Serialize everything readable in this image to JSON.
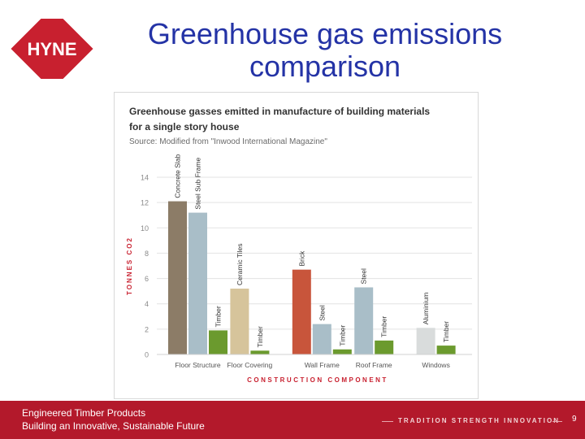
{
  "header": {
    "logo_text": "HYNE",
    "title_line1": "Greenhouse gas emissions",
    "title_line2": "comparison"
  },
  "chart_data": {
    "type": "bar",
    "title_line1": "Greenhouse gasses emitted in manufacture of building materials",
    "title_line2": "for a single story house",
    "source": "Source: Modified from \"Inwood International Magazine\"",
    "xlabel": "CONSTRUCTION COMPONENT",
    "ylabel": "TONNES CO2",
    "ylim": [
      0,
      14
    ],
    "yticks": [
      0,
      2,
      4,
      6,
      8,
      10,
      12,
      14
    ],
    "ytick_labels": [
      "0",
      "2",
      "4",
      "6",
      "8",
      "10",
      "12",
      "14"
    ],
    "grid": true,
    "groups": [
      {
        "category": "Floor Structure",
        "bars": [
          {
            "label": "Concrete Slab",
            "value": 12.1,
            "color": "#8c7c67"
          },
          {
            "label": "Steel Sub Frame",
            "value": 11.2,
            "color": "#a9bec8"
          },
          {
            "label": "Timber",
            "value": 1.9,
            "color": "#6b9a2e"
          }
        ]
      },
      {
        "category": "Floor Covering",
        "bars": [
          {
            "label": "Ceramic Tiles",
            "value": 5.2,
            "color": "#d6c49b"
          },
          {
            "label": "Timber",
            "value": 0.3,
            "color": "#6b9a2e"
          }
        ]
      },
      {
        "category": "Wall Frame",
        "bars": [
          {
            "label": "Brick",
            "value": 6.7,
            "color": "#c8553b"
          },
          {
            "label": "Steel",
            "value": 2.4,
            "color": "#a9bec8"
          },
          {
            "label": "Timber",
            "value": 0.4,
            "color": "#6b9a2e"
          }
        ]
      },
      {
        "category": "Roof Frame",
        "bars": [
          {
            "label": "Steel",
            "value": 5.3,
            "color": "#a9bec8"
          },
          {
            "label": "Timber",
            "value": 1.1,
            "color": "#6b9a2e"
          }
        ]
      },
      {
        "category": "Windows",
        "bars": [
          {
            "label": "Aluminium",
            "value": 2.1,
            "color": "#d9dcdc"
          },
          {
            "label": "Timber",
            "value": 0.7,
            "color": "#6b9a2e"
          }
        ]
      }
    ]
  },
  "footer": {
    "line1": "Engineered Timber Products",
    "line2": "Building an Innovative, Sustainable Future",
    "tagline": "TRADITION STRENGTH INNOVATION",
    "page_number": "9"
  },
  "colors": {
    "brand_red": "#c8202f",
    "footer_red": "#b3192b",
    "title_blue": "#2433a6",
    "axis_label_red": "#c8202f"
  }
}
